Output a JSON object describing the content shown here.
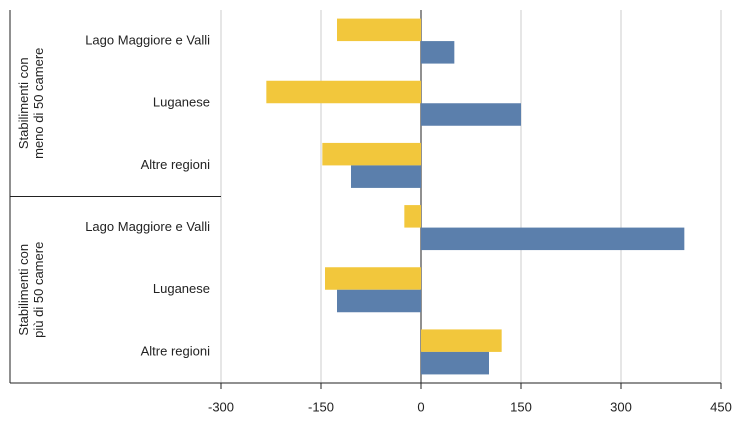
{
  "chart_data": {
    "type": "bar",
    "orientation": "horizontal",
    "groups": [
      {
        "label": [
          "Stabilimenti con",
          "meno di 50 camere"
        ]
      },
      {
        "label": [
          "Stabilimenti con",
          "più di 50 camere"
        ]
      }
    ],
    "categories": [
      "Lago Maggiore e Valli",
      "Luganese",
      "Altre regioni",
      "Lago Maggiore e Valli",
      "Luganese",
      "Altre regioni"
    ],
    "series": [
      {
        "color": "#f2c73c",
        "values": [
          -126,
          -232,
          -148,
          -25,
          -144,
          121
        ]
      },
      {
        "color": "#5b7fac",
        "values": [
          50,
          150,
          -105,
          395,
          -126,
          102
        ]
      }
    ],
    "xlim": [
      -300,
      450
    ],
    "xticks": [
      -300,
      -150,
      0,
      150,
      300,
      450
    ],
    "grid": true
  }
}
